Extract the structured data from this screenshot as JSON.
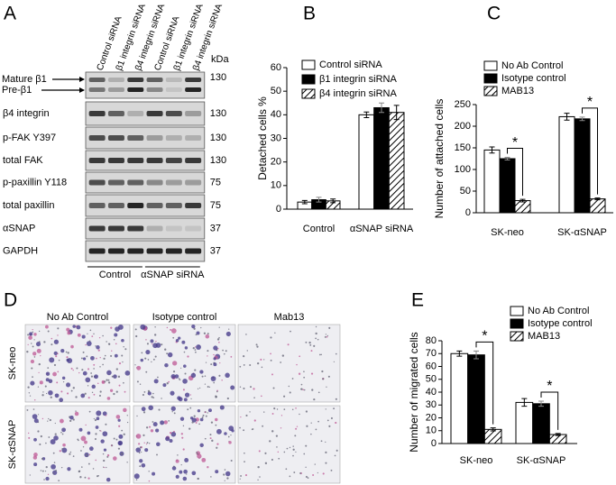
{
  "panels": [
    "A",
    "B",
    "C",
    "D",
    "E"
  ],
  "blot": {
    "lanes": [
      "Control siRNA",
      "β1 integrin siRNA",
      "β4 integrin siRNA",
      "Control siRNA",
      "β1 integrin siRNA",
      "β4 integrin siRNA"
    ],
    "unit": "kDa",
    "arrows": [
      "Mature β1",
      "Pre-β1"
    ],
    "rows": [
      {
        "label": "",
        "kda": "130"
      },
      {
        "label": "β4 integrin",
        "kda": "130"
      },
      {
        "label": "p-FAK Y397",
        "kda": "130"
      },
      {
        "label": "total FAK",
        "kda": "130"
      },
      {
        "label": "p-paxillin Y118",
        "kda": "75"
      },
      {
        "label": "total paxillin",
        "kda": "75"
      },
      {
        "label": "αSNAP",
        "kda": "37"
      },
      {
        "label": "GAPDH",
        "kda": "37"
      }
    ],
    "groups": [
      "Control",
      "αSNAP siRNA"
    ]
  },
  "micrographs": {
    "columns": [
      "No Ab Control",
      "Isotype control",
      "Mab13"
    ],
    "rows": [
      "SK-neo",
      "SK-αSNAP"
    ]
  },
  "chart_data": [
    {
      "type": "bar",
      "y_label": "Detached cells %",
      "categories": [
        "Control",
        "αSNAP siRNA"
      ],
      "series": [
        {
          "name": "Control siRNA",
          "color": "#ffffff",
          "values": [
            3,
            40
          ],
          "errors": [
            0.7,
            1.2
          ]
        },
        {
          "name": "β1 integrin siRNA",
          "color": "#000000",
          "values": [
            4,
            43
          ],
          "errors": [
            1,
            2
          ]
        },
        {
          "name": "β4 integrin siRNA",
          "color": "#ffffff",
          "pattern": "hatch",
          "values": [
            3.5,
            41
          ],
          "errors": [
            0.8,
            3
          ]
        }
      ],
      "ylim": [
        0,
        60
      ],
      "yticks": [
        0,
        10,
        20,
        30,
        40,
        50,
        60
      ]
    },
    {
      "type": "bar",
      "y_label": "Number of attached cells",
      "categories": [
        "SK-neo",
        "SK-αSNAP"
      ],
      "series": [
        {
          "name": "No Ab Control",
          "color": "#ffffff",
          "values": [
            145,
            222
          ],
          "errors": [
            7,
            8
          ]
        },
        {
          "name": "Isotype control",
          "color": "#000000",
          "values": [
            125,
            217
          ],
          "errors": [
            3,
            4
          ]
        },
        {
          "name": "MAB13",
          "color": "#ffffff",
          "pattern": "hatch",
          "values": [
            28,
            32
          ],
          "errors": [
            3,
            2
          ]
        }
      ],
      "annotations": [
        "*",
        "*"
      ],
      "ylim": [
        0,
        250
      ],
      "yticks": [
        0,
        50,
        100,
        150,
        200,
        250
      ]
    },
    {
      "type": "bar",
      "y_label": "Number of migrated cells",
      "categories": [
        "SK-neo",
        "SK-αSNAP"
      ],
      "series": [
        {
          "name": "No Ab Control",
          "color": "#ffffff",
          "values": [
            70,
            32
          ],
          "errors": [
            2,
            3
          ]
        },
        {
          "name": "Isotype control",
          "color": "#000000",
          "values": [
            69,
            31
          ],
          "errors": [
            3,
            2
          ]
        },
        {
          "name": "MAB13",
          "color": "#ffffff",
          "pattern": "hatch",
          "values": [
            11,
            7
          ],
          "errors": [
            1.2,
            0.8
          ]
        }
      ],
      "annotations": [
        "*",
        "*"
      ],
      "ylim": [
        0,
        80
      ],
      "yticks": [
        0,
        10,
        20,
        30,
        40,
        50,
        60,
        70,
        80
      ]
    }
  ]
}
